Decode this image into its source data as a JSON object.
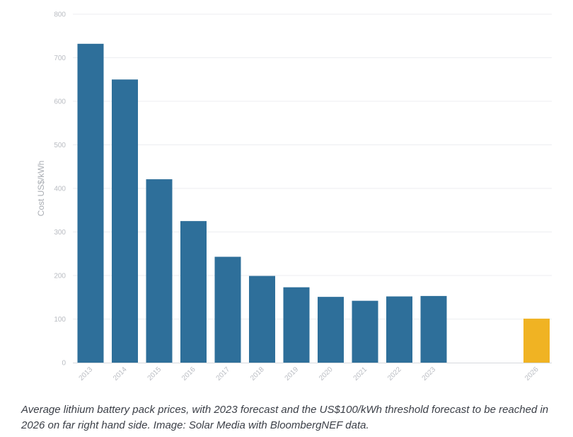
{
  "chart_data": {
    "type": "bar",
    "categories": [
      "2013",
      "2014",
      "2015",
      "2016",
      "2017",
      "2018",
      "2019",
      "2020",
      "2021",
      "2022",
      "2023",
      "",
      "",
      "2026"
    ],
    "values": [
      732,
      650,
      421,
      325,
      243,
      199,
      173,
      151,
      142,
      152,
      153,
      null,
      null,
      101
    ],
    "bar_colors": [
      "#2e6f9a",
      "#2e6f9a",
      "#2e6f9a",
      "#2e6f9a",
      "#2e6f9a",
      "#2e6f9a",
      "#2e6f9a",
      "#2e6f9a",
      "#2e6f9a",
      "#2e6f9a",
      "#2e6f9a",
      "#2e6f9a",
      "#2e6f9a",
      "#f0b323"
    ],
    "title": "",
    "xlabel": "",
    "ylabel": "Cost US$/kWh",
    "ylim": [
      0,
      800
    ],
    "yticks": [
      "0",
      "100",
      "200",
      "300",
      "400",
      "500",
      "600",
      "700",
      "800"
    ],
    "grid": true,
    "legend": "none"
  },
  "caption": "Average lithium battery pack prices, with 2023 forecast and the US$100/kWh threshold forecast to be reached in 2026 on far right hand side. Image: Solar Media with BloombergNEF data."
}
